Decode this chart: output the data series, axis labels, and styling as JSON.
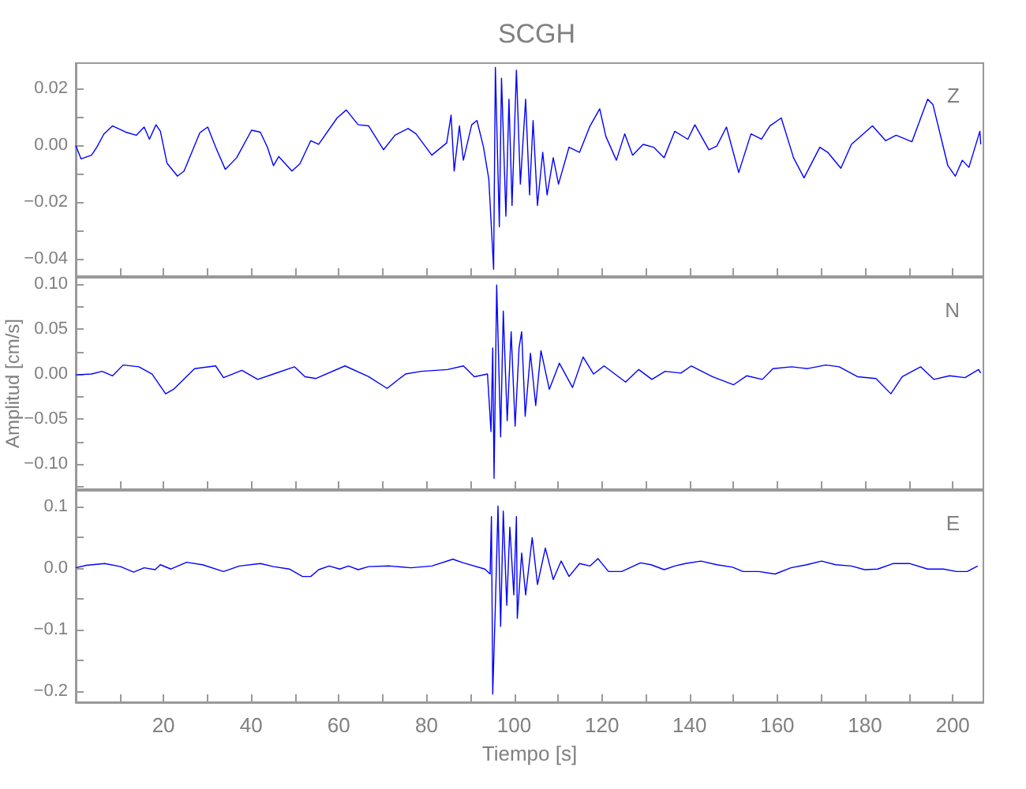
{
  "chart_data": [
    {
      "type": "line",
      "title": "SCGH",
      "annotations": [
        "Z"
      ],
      "tick_labels": "y",
      "xlim": [
        0,
        207
      ],
      "ylim": [
        -0.046,
        0.029
      ],
      "xticks": [
        {
          "value": 10,
          "label": null
        },
        20,
        {
          "value": 30,
          "label": null
        },
        40,
        {
          "value": 50,
          "label": null
        },
        60,
        {
          "value": 70,
          "label": null
        },
        80,
        {
          "value": 90,
          "label": null
        },
        100,
        {
          "value": 110,
          "label": null
        },
        120,
        {
          "value": 130,
          "label": null
        },
        140,
        {
          "value": 150,
          "label": null
        },
        160,
        {
          "value": 170,
          "label": null
        },
        180,
        {
          "value": 190,
          "label": null
        },
        200
      ],
      "yticks": [
        {
          "value": -0.04,
          "label": "−0.04"
        },
        {
          "value": -0.03,
          "label": null
        },
        {
          "value": -0.02,
          "label": "−0.02"
        },
        {
          "value": -0.01,
          "label": null
        },
        {
          "value": 0,
          "label": "0.00"
        },
        {
          "value": 0.01,
          "label": null
        },
        {
          "value": 0.02,
          "label": "0.02"
        }
      ],
      "x": [
        0,
        1.2,
        3.6,
        4.8,
        6.4,
        8.4,
        11.4,
        13.8,
        15.6,
        16.8,
        18.3,
        19.3,
        20.8,
        23.2,
        24.7,
        28.3,
        30.1,
        31.9,
        34.1,
        36.7,
        40.1,
        42.1,
        43.7,
        45.1,
        46.3,
        49.3,
        51.1,
        53.6,
        55.4,
        59.6,
        61.7,
        64.4,
        66.8,
        70.2,
        72.8,
        75.8,
        77.6,
        81.2,
        84.6,
        85.6,
        86.3,
        87.5,
        88.4,
        90.3,
        91.5,
        93.0,
        94.2,
        95.3,
        95.7,
        96.6,
        97.1,
        98.1,
        98.8,
        99.5,
        100.5,
        101.4,
        102.6,
        103.5,
        104.3,
        105.3,
        106.5,
        107.5,
        108.9,
        110.1,
        112.5,
        114.9,
        117.3,
        119.5,
        120.9,
        123.3,
        125.2,
        127.0,
        129.4,
        131.8,
        134.2,
        136.6,
        139.6,
        141.2,
        144.4,
        146.2,
        148.4,
        151.2,
        154.0,
        156.4,
        158.3,
        160.9,
        163.7,
        166.1,
        169.7,
        171.5,
        174.5,
        176.9,
        181.7,
        184.7,
        187.1,
        190.7,
        194.3,
        195.5,
        198.9,
        200.6,
        202.2,
        203.7,
        206.2,
        206.4
      ],
      "series": [
        {
          "color": "#0000ff",
          "values": [
            0,
            -0.0047,
            -0.0034,
            -0.0006,
            0.004,
            0.0069,
            0.0047,
            0.0036,
            0.0065,
            0.0022,
            0.0073,
            0.005,
            -0.0062,
            -0.0108,
            -0.009,
            0.0045,
            0.0065,
            -0.0006,
            -0.0084,
            -0.0043,
            0.0054,
            0.0047,
            -0.0006,
            -0.0071,
            -0.0039,
            -0.009,
            -0.0065,
            0.0017,
            0.0004,
            0.0097,
            0.0125,
            0.0073,
            0.0069,
            -0.0015,
            0.0036,
            0.006,
            0.0041,
            -0.0034,
            0.0009,
            0.0107,
            -0.009,
            0.0069,
            -0.0052,
            0.0073,
            0.0088,
            -0.0006,
            -0.0118,
            -0.0436,
            0.0275,
            -0.0286,
            0.0237,
            -0.0249,
            0.0163,
            -0.0211,
            0.0265,
            -0.0136,
            0.0163,
            -0.0174,
            0.0088,
            -0.0211,
            -0.0024,
            -0.0174,
            -0.0043,
            -0.0136,
            -0.0006,
            -0.0024,
            0.0069,
            0.0129,
            0.0032,
            -0.0052,
            0.0041,
            -0.0034,
            0.0004,
            -0.0006,
            -0.0043,
            0.005,
            0.0022,
            0.0073,
            -0.0015,
            -0.0002,
            0.0065,
            -0.0095,
            0.0041,
            0.0022,
            0.0069,
            0.0097,
            -0.0043,
            -0.0114,
            -0.0006,
            -0.0024,
            -0.008,
            0.0004,
            0.0069,
            0.0017,
            0.0036,
            0.0013,
            0.0163,
            0.0144,
            -0.0071,
            -0.0108,
            -0.0052,
            -0.0077,
            0.005,
            0.0004
          ]
        }
      ]
    },
    {
      "type": "line",
      "ylabel": "Amplitud [cm/s]",
      "annotations": [
        "N"
      ],
      "tick_labels": "y",
      "xlim": [
        0,
        207
      ],
      "ylim": [
        -0.128,
        0.107
      ],
      "xticks": [
        {
          "value": 10,
          "label": null
        },
        20,
        {
          "value": 30,
          "label": null
        },
        40,
        {
          "value": 50,
          "label": null
        },
        60,
        {
          "value": 70,
          "label": null
        },
        80,
        {
          "value": 90,
          "label": null
        },
        100,
        {
          "value": 110,
          "label": null
        },
        120,
        {
          "value": 130,
          "label": null
        },
        140,
        {
          "value": 150,
          "label": null
        },
        160,
        {
          "value": 170,
          "label": null
        },
        180,
        {
          "value": 190,
          "label": null
        },
        200
      ],
      "yticks": [
        {
          "value": -0.125,
          "label": null
        },
        {
          "value": -0.1,
          "label": "−0.10"
        },
        {
          "value": -0.075,
          "label": null
        },
        {
          "value": -0.05,
          "label": "−0.05"
        },
        {
          "value": -0.025,
          "label": null
        },
        {
          "value": 0,
          "label": "0.00"
        },
        {
          "value": 0.025,
          "label": null
        },
        {
          "value": 0.05,
          "label": "0.05"
        },
        {
          "value": 0.075,
          "label": null
        },
        {
          "value": 0.1,
          "label": "0.10"
        }
      ],
      "x": [
        0,
        3.6,
        6.0,
        8.4,
        10.8,
        14.4,
        17.4,
        20.5,
        22.3,
        27.1,
        31.9,
        33.7,
        37.9,
        41.5,
        45.1,
        49.9,
        52.3,
        54.8,
        61.4,
        66.8,
        71.0,
        75.2,
        78.8,
        84.8,
        88.4,
        90.9,
        93.9,
        94.7,
        95.1,
        95.4,
        96.0,
        96.9,
        97.5,
        98.4,
        99.3,
        100.2,
        101.1,
        101.7,
        102.5,
        103.7,
        104.9,
        106.1,
        108.0,
        110.3,
        113.3,
        115.7,
        118.1,
        120.5,
        125.4,
        128.4,
        131.4,
        134.4,
        138.0,
        140.4,
        145.2,
        150.0,
        153.0,
        156.6,
        159.0,
        163.3,
        166.9,
        171.1,
        174.1,
        178.3,
        182.5,
        185.9,
        188.5,
        192.7,
        195.7,
        199.3,
        202.8,
        205.9,
        206.4
      ],
      "series": [
        {
          "color": "#0000ff",
          "values": [
            -0.001,
            0,
            0.003,
            -0.002,
            0.01,
            0.008,
            0,
            -0.022,
            -0.017,
            0.006,
            0.009,
            -0.004,
            0.004,
            -0.006,
            0,
            0.008,
            -0.003,
            -0.005,
            0.009,
            -0.003,
            -0.016,
            0,
            0.003,
            0.005,
            0.009,
            -0.003,
            0,
            -0.064,
            0.029,
            -0.116,
            0.099,
            -0.07,
            0.07,
            -0.052,
            0.047,
            -0.058,
            0.029,
            0.047,
            -0.047,
            0.023,
            -0.035,
            0.026,
            -0.017,
            0.012,
            -0.015,
            0.019,
            0,
            0.009,
            -0.009,
            0.005,
            -0.006,
            0.003,
            0.001,
            0.009,
            -0.003,
            -0.012,
            -0.002,
            -0.006,
            0.006,
            0.008,
            0.006,
            0.01,
            0.008,
            -0.003,
            -0.005,
            -0.022,
            -0.003,
            0.008,
            -0.006,
            -0.002,
            -0.004,
            0.005,
            0.001
          ]
        }
      ]
    },
    {
      "type": "line",
      "xlabel": "Tiempo [s]",
      "annotations": [
        "E"
      ],
      "xlim": [
        0,
        207
      ],
      "ylim": [
        -0.218,
        0.125
      ],
      "xticks": [
        {
          "value": 10,
          "label": null
        },
        20,
        {
          "value": 30,
          "label": null
        },
        40,
        {
          "value": 50,
          "label": null
        },
        60,
        {
          "value": 70,
          "label": null
        },
        80,
        {
          "value": 90,
          "label": null
        },
        100,
        {
          "value": 110,
          "label": null
        },
        120,
        {
          "value": 130,
          "label": null
        },
        140,
        {
          "value": 150,
          "label": null
        },
        160,
        {
          "value": 170,
          "label": null
        },
        180,
        {
          "value": 190,
          "label": null
        },
        200
      ],
      "yticks": [
        {
          "value": -0.2,
          "label": "−0.2"
        },
        {
          "value": -0.15,
          "label": null
        },
        {
          "value": -0.1,
          "label": "−0.1"
        },
        {
          "value": -0.05,
          "label": null
        },
        {
          "value": 0,
          "label": "0.0"
        },
        {
          "value": 0.05,
          "label": null
        },
        {
          "value": 0.1,
          "label": "0.1"
        }
      ],
      "x": [
        0,
        2.4,
        6.6,
        10.2,
        13.2,
        15.6,
        18.1,
        19.3,
        21.7,
        25.3,
        28.9,
        33.7,
        37.3,
        42.1,
        45.1,
        48.7,
        51.7,
        53.6,
        55.4,
        57.8,
        60.2,
        62.2,
        64.4,
        66.8,
        71.6,
        76.4,
        81.2,
        86.0,
        88.4,
        93.3,
        94.5,
        94.8,
        95.1,
        95.7,
        96.3,
        96.9,
        97.5,
        98.3,
        99.0,
        99.9,
        100.5,
        100.7,
        101.7,
        102.6,
        104.1,
        105.3,
        107.1,
        108.9,
        110.7,
        112.5,
        114.9,
        117.3,
        119.1,
        121.5,
        124.5,
        128.8,
        131.2,
        134.2,
        136.6,
        139.0,
        142.6,
        146.2,
        149.8,
        152.2,
        155.8,
        159.5,
        163.1,
        166.7,
        170.1,
        173.3,
        176.9,
        179.9,
        182.9,
        186.5,
        190.1,
        194.3,
        197.9,
        200.9,
        203.3,
        205.7
      ],
      "series": [
        {
          "color": "#0000ff",
          "values": [
            0,
            0.004,
            0.007,
            0.002,
            -0.007,
            0,
            -0.003,
            0.005,
            -0.002,
            0.009,
            0.005,
            -0.006,
            0.003,
            0.007,
            0.002,
            -0.002,
            -0.014,
            -0.014,
            -0.003,
            0.003,
            -0.002,
            0.003,
            -0.003,
            0.002,
            0.003,
            0,
            0.003,
            0.014,
            0.008,
            -0.002,
            -0.01,
            0.083,
            -0.205,
            -0.061,
            0.1,
            -0.095,
            0.092,
            -0.061,
            0.066,
            -0.044,
            0.083,
            -0.082,
            0.024,
            -0.044,
            0.049,
            -0.027,
            0.032,
            -0.019,
            0.011,
            -0.014,
            0.007,
            0.003,
            0.015,
            -0.006,
            -0.006,
            0.008,
            0.005,
            -0.003,
            0.003,
            0.007,
            0.011,
            0.005,
            0.001,
            -0.006,
            -0.006,
            -0.01,
            0,
            0.005,
            0.011,
            0.005,
            0.003,
            -0.003,
            -0.002,
            0.007,
            0.007,
            -0.002,
            -0.002,
            -0.006,
            -0.006,
            0.003
          ]
        }
      ]
    }
  ]
}
